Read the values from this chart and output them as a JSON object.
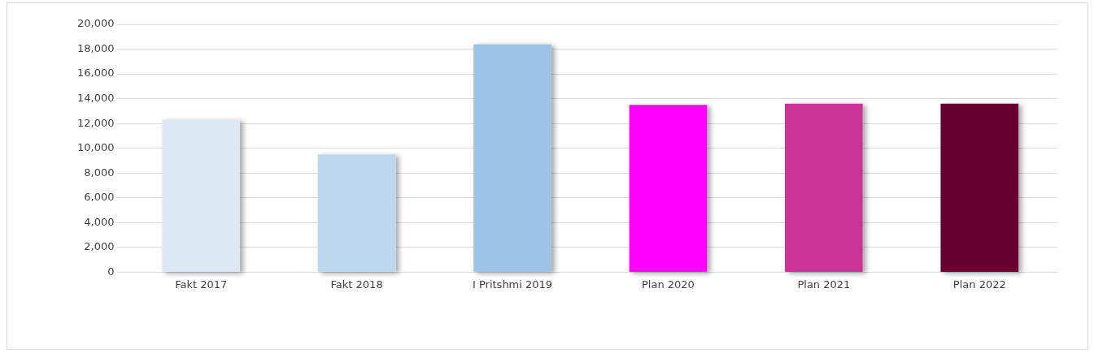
{
  "chart_data": {
    "type": "bar",
    "categories": [
      "Fakt 2017",
      "Fakt 2018",
      "I Pritshmi 2019",
      "Plan 2020",
      "Plan 2021",
      "Plan 2022"
    ],
    "values": [
      12300,
      9500,
      18400,
      13500,
      13600,
      13600
    ],
    "colors": [
      "#dde8f5",
      "#bdd7ee",
      "#9dc3e6",
      "#ff00ff",
      "#cc3399",
      "#660033"
    ],
    "ylim": [
      0,
      20000
    ],
    "yticks": [
      0,
      {
        "value": 2000,
        "label": "2,000"
      },
      {
        "value": 4000,
        "label": "4,000"
      },
      {
        "value": 6000,
        "label": "6,000"
      },
      {
        "value": 8000,
        "label": "8,000"
      },
      {
        "value": 10000,
        "label": "10,000"
      },
      {
        "value": 12000,
        "label": "12,000"
      },
      {
        "value": 14000,
        "label": "14,000"
      },
      {
        "value": 16000,
        "label": "16,000"
      },
      {
        "value": 18000,
        "label": "18,000"
      },
      {
        "value": 20000,
        "label": "20,000"
      }
    ],
    "grid": "y",
    "legend": false
  }
}
